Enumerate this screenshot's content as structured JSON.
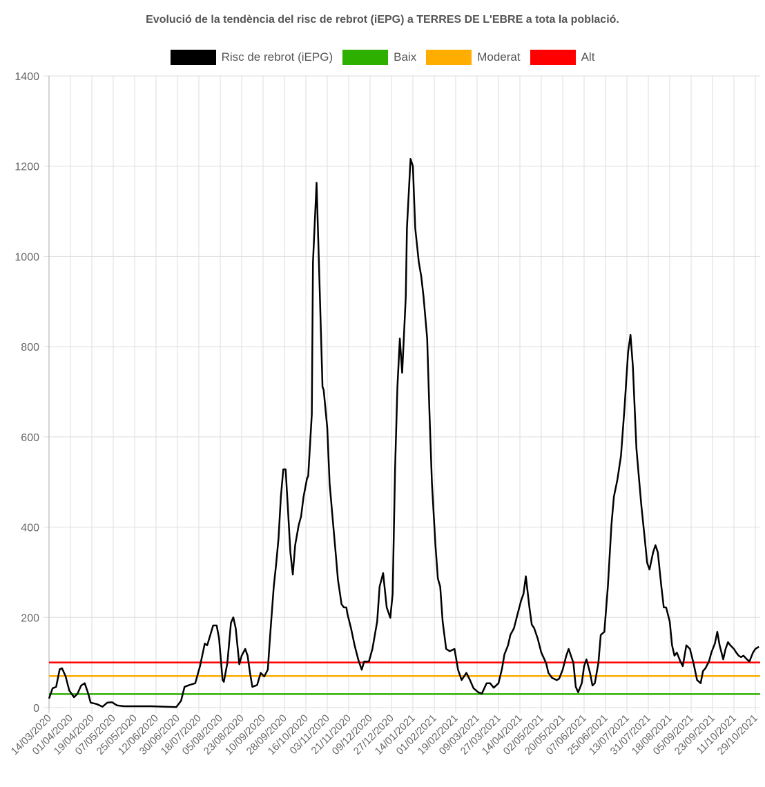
{
  "chart_data": {
    "type": "line",
    "title": "Evolució de la tendència del risc de rebrot (iEPG) a TERRES DE L'EBRE a tota la població.",
    "xlabel": "",
    "ylabel": "",
    "ylim": [
      0,
      1400
    ],
    "yticks": [
      "0",
      "200",
      "400",
      "600",
      "800",
      "1000",
      "1200",
      "1400"
    ],
    "grid": true,
    "legend_position": "top",
    "x_unit": "days since 14/03/2020",
    "xticks": [
      "14/03/2020",
      "01/04/2020",
      "19/04/2020",
      "07/05/2020",
      "25/05/2020",
      "12/06/2020",
      "30/06/2020",
      "18/07/2020",
      "05/08/2020",
      "23/08/2020",
      "10/09/2020",
      "28/09/2020",
      "16/10/2020",
      "03/11/2020",
      "21/11/2020",
      "09/12/2020",
      "27/12/2020",
      "14/01/2021",
      "01/02/2021",
      "19/02/2021",
      "09/03/2021",
      "27/03/2021",
      "14/04/2021",
      "02/05/2021",
      "20/05/2021",
      "07/06/2021",
      "25/06/2021",
      "13/07/2021",
      "31/07/2021",
      "18/08/2021",
      "05/09/2021",
      "23/09/2021",
      "11/10/2021",
      "29/10/2021"
    ],
    "xtick_step_days": 18,
    "series": [
      {
        "name": "Risc de rebrot (iEPG)",
        "color": "#000000",
        "points": [
          [
            0,
            20
          ],
          [
            3,
            43
          ],
          [
            6,
            46
          ],
          [
            9,
            85
          ],
          [
            11,
            87
          ],
          [
            14,
            69
          ],
          [
            17,
            38
          ],
          [
            21,
            23
          ],
          [
            24,
            31
          ],
          [
            27,
            49
          ],
          [
            30,
            54
          ],
          [
            33,
            31
          ],
          [
            35,
            11
          ],
          [
            40,
            8
          ],
          [
            45,
            2
          ],
          [
            49,
            11
          ],
          [
            53,
            12
          ],
          [
            57,
            5
          ],
          [
            63,
            3
          ],
          [
            75,
            3
          ],
          [
            86,
            3
          ],
          [
            98,
            2
          ],
          [
            107,
            1
          ],
          [
            111,
            15
          ],
          [
            114,
            46
          ],
          [
            118,
            50
          ],
          [
            123,
            54
          ],
          [
            127,
            92
          ],
          [
            131,
            142
          ],
          [
            133,
            138
          ],
          [
            136,
            164
          ],
          [
            138,
            182
          ],
          [
            141,
            182
          ],
          [
            143,
            153
          ],
          [
            146,
            61
          ],
          [
            147,
            57
          ],
          [
            150,
            99
          ],
          [
            153,
            188
          ],
          [
            155,
            200
          ],
          [
            157,
            176
          ],
          [
            160,
            96
          ],
          [
            162,
            115
          ],
          [
            165,
            130
          ],
          [
            167,
            115
          ],
          [
            169,
            77
          ],
          [
            171,
            46
          ],
          [
            175,
            50
          ],
          [
            178,
            77
          ],
          [
            181,
            69
          ],
          [
            184,
            84
          ],
          [
            186,
            161
          ],
          [
            189,
            268
          ],
          [
            191,
            317
          ],
          [
            193,
            375
          ],
          [
            195,
            467
          ],
          [
            197,
            528
          ],
          [
            199,
            528
          ],
          [
            201,
            436
          ],
          [
            203,
            344
          ],
          [
            205,
            295
          ],
          [
            207,
            360
          ],
          [
            210,
            405
          ],
          [
            212,
            424
          ],
          [
            214,
            467
          ],
          [
            217,
            508
          ],
          [
            218,
            513
          ],
          [
            221,
            650
          ],
          [
            222,
            987
          ],
          [
            225,
            1163
          ],
          [
            227,
            987
          ],
          [
            230,
            711
          ],
          [
            231,
            704
          ],
          [
            234,
            620
          ],
          [
            236,
            497
          ],
          [
            239,
            405
          ],
          [
            241,
            344
          ],
          [
            243,
            283
          ],
          [
            246,
            229
          ],
          [
            248,
            222
          ],
          [
            250,
            222
          ],
          [
            251,
            207
          ],
          [
            254,
            176
          ],
          [
            257,
            138
          ],
          [
            260,
            107
          ],
          [
            263,
            84
          ],
          [
            265,
            102
          ],
          [
            269,
            102
          ],
          [
            272,
            130
          ],
          [
            276,
            191
          ],
          [
            278,
            268
          ],
          [
            281,
            298
          ],
          [
            284,
            222
          ],
          [
            287,
            199
          ],
          [
            289,
            252
          ],
          [
            291,
            528
          ],
          [
            293,
            711
          ],
          [
            295,
            818
          ],
          [
            297,
            742
          ],
          [
            300,
            910
          ],
          [
            301,
            1063
          ],
          [
            304,
            1216
          ],
          [
            306,
            1200
          ],
          [
            308,
            1063
          ],
          [
            311,
            987
          ],
          [
            313,
            956
          ],
          [
            315,
            910
          ],
          [
            318,
            818
          ],
          [
            320,
            650
          ],
          [
            322,
            497
          ],
          [
            325,
            360
          ],
          [
            327,
            286
          ],
          [
            329,
            268
          ],
          [
            331,
            191
          ],
          [
            334,
            130
          ],
          [
            337,
            125
          ],
          [
            341,
            130
          ],
          [
            344,
            84
          ],
          [
            347,
            61
          ],
          [
            351,
            77
          ],
          [
            354,
            61
          ],
          [
            357,
            43
          ],
          [
            361,
            34
          ],
          [
            364,
            31
          ],
          [
            368,
            54
          ],
          [
            371,
            54
          ],
          [
            374,
            44
          ],
          [
            378,
            54
          ],
          [
            381,
            87
          ],
          [
            383,
            118
          ],
          [
            386,
            138
          ],
          [
            388,
            161
          ],
          [
            391,
            176
          ],
          [
            394,
            207
          ],
          [
            397,
            237
          ],
          [
            399,
            252
          ],
          [
            401,
            291
          ],
          [
            404,
            222
          ],
          [
            406,
            184
          ],
          [
            408,
            176
          ],
          [
            411,
            153
          ],
          [
            414,
            122
          ],
          [
            418,
            99
          ],
          [
            420,
            77
          ],
          [
            423,
            66
          ],
          [
            427,
            61
          ],
          [
            429,
            64
          ],
          [
            432,
            84
          ],
          [
            435,
            115
          ],
          [
            437,
            130
          ],
          [
            441,
            99
          ],
          [
            443,
            46
          ],
          [
            445,
            34
          ],
          [
            448,
            54
          ],
          [
            450,
            92
          ],
          [
            452,
            107
          ],
          [
            455,
            77
          ],
          [
            457,
            49
          ],
          [
            459,
            54
          ],
          [
            462,
            99
          ],
          [
            464,
            161
          ],
          [
            467,
            168
          ],
          [
            470,
            268
          ],
          [
            473,
            405
          ],
          [
            475,
            467
          ],
          [
            478,
            505
          ],
          [
            481,
            558
          ],
          [
            484,
            666
          ],
          [
            487,
            788
          ],
          [
            489,
            826
          ],
          [
            491,
            757
          ],
          [
            494,
            574
          ],
          [
            496,
            513
          ],
          [
            498,
            451
          ],
          [
            501,
            375
          ],
          [
            503,
            321
          ],
          [
            505,
            306
          ],
          [
            508,
            344
          ],
          [
            510,
            360
          ],
          [
            512,
            344
          ],
          [
            515,
            268
          ],
          [
            517,
            222
          ],
          [
            519,
            222
          ],
          [
            522,
            191
          ],
          [
            524,
            138
          ],
          [
            526,
            115
          ],
          [
            528,
            122
          ],
          [
            531,
            102
          ],
          [
            533,
            92
          ],
          [
            536,
            138
          ],
          [
            539,
            130
          ],
          [
            542,
            99
          ],
          [
            545,
            61
          ],
          [
            548,
            54
          ],
          [
            550,
            81
          ],
          [
            552,
            87
          ],
          [
            555,
            102
          ],
          [
            557,
            122
          ],
          [
            560,
            142
          ],
          [
            562,
            168
          ],
          [
            564,
            138
          ],
          [
            567,
            107
          ],
          [
            569,
            130
          ],
          [
            571,
            145
          ],
          [
            573,
            138
          ],
          [
            576,
            130
          ],
          [
            578,
            122
          ],
          [
            580,
            115
          ],
          [
            582,
            112
          ],
          [
            584,
            115
          ],
          [
            587,
            107
          ],
          [
            589,
            102
          ],
          [
            592,
            122
          ],
          [
            594,
            130
          ],
          [
            597,
            135
          ]
        ]
      },
      {
        "name": "Baix",
        "color": "#2db000",
        "value": 30
      },
      {
        "name": "Moderat",
        "color": "#ffae00",
        "value": 70
      },
      {
        "name": "Alt",
        "color": "#ff0000",
        "value": 100
      }
    ]
  }
}
